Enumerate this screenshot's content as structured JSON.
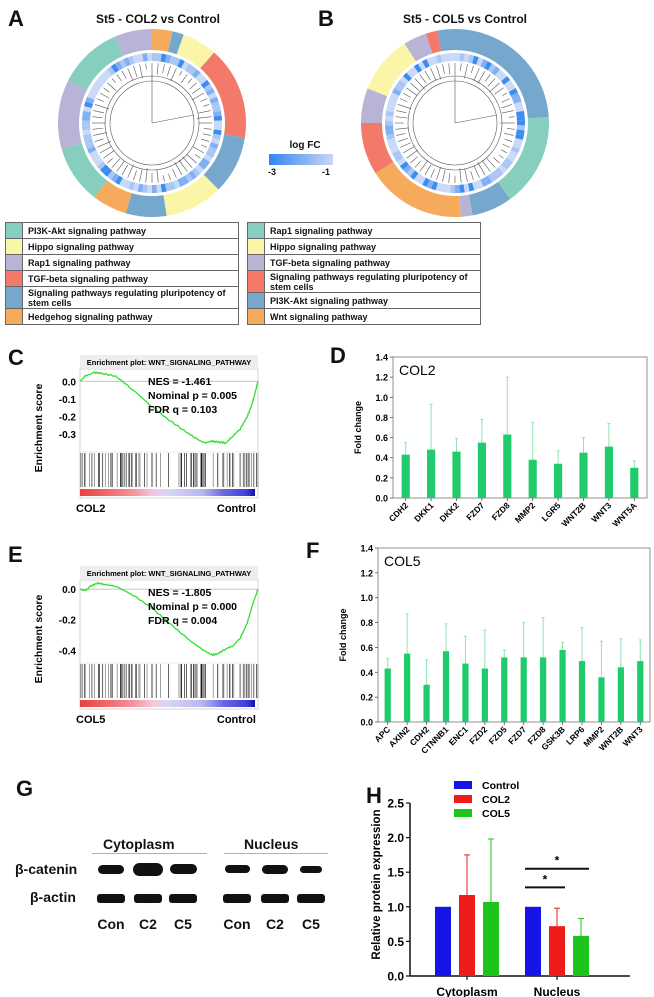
{
  "panels": {
    "A": {
      "letter": "A",
      "title": "St5 - COL2 vs Control",
      "legend": [
        {
          "label": "PI3K-Akt signaling pathway",
          "color": "#86cfbe"
        },
        {
          "label": "Hippo signaling pathway",
          "color": "#fbf6a7"
        },
        {
          "label": "Rap1 signaling pathway",
          "color": "#b7b4d6"
        },
        {
          "label": "TGF-beta signaling pathway",
          "color": "#f3796a"
        },
        {
          "label": "Signaling pathways regulating pluripotency of stem cells",
          "color": "#76a8cd"
        },
        {
          "label": "Hedgehog signaling pathway",
          "color": "#f6ab5c"
        }
      ]
    },
    "B": {
      "letter": "B",
      "title": "St5 - COL5 vs Control",
      "legend": [
        {
          "label": "Rap1 signaling pathway",
          "color": "#86cfbe"
        },
        {
          "label": "Hippo signaling pathway",
          "color": "#fbf6a7"
        },
        {
          "label": "TGF-beta signaling pathway",
          "color": "#b7b4d6"
        },
        {
          "label": "Signaling pathways regulating pluripotency of stem cells",
          "color": "#f3796a"
        },
        {
          "label": "PI3K-Akt signaling pathway",
          "color": "#76a8cd"
        },
        {
          "label": "Wnt signaling pathway",
          "color": "#f6ab5c"
        }
      ]
    },
    "logfc_legend": {
      "title": "log FC",
      "min_label": "-3",
      "max_label": "-1",
      "color_low": "#2f86f0",
      "color_high": "#c9d7f6"
    },
    "G": {
      "letter": "G",
      "groups": [
        "Cytoplasm",
        "Nucleus"
      ],
      "rows": [
        "β-catenin",
        "β-actin"
      ],
      "lanes": [
        "Con",
        "C2",
        "C5",
        "Con",
        "C2",
        "C5"
      ],
      "underline_color": "#f0a070"
    }
  },
  "chart_data": [
    {
      "id": "C",
      "letter": "C",
      "type": "line",
      "title": "Enrichment plot: WNT_SIGNALING_PATHWAY",
      "ylabel": "Enrichment score",
      "yticks": [
        "0.0",
        "-0.1",
        "-0.2",
        "-0.3"
      ],
      "ylim": [
        -0.39,
        0.07
      ],
      "x_left_label": "COL2",
      "x_right_label": "Control",
      "stats": [
        "NES = -1.461",
        "Nominal p = 0.005",
        "FDR q = 0.103"
      ],
      "line_color": "#33dd33",
      "curve": [
        [
          0,
          0.0
        ],
        [
          0.03,
          0.03
        ],
        [
          0.08,
          0.05
        ],
        [
          0.12,
          0.045
        ],
        [
          0.2,
          0.03
        ],
        [
          0.3,
          -0.05
        ],
        [
          0.4,
          -0.14
        ],
        [
          0.5,
          -0.22
        ],
        [
          0.6,
          -0.29
        ],
        [
          0.66,
          -0.33
        ],
        [
          0.7,
          -0.35
        ],
        [
          0.74,
          -0.34
        ],
        [
          0.78,
          -0.345
        ],
        [
          0.82,
          -0.35
        ],
        [
          0.86,
          -0.31
        ],
        [
          0.9,
          -0.27
        ],
        [
          0.94,
          -0.2
        ],
        [
          0.97,
          -0.12
        ],
        [
          1.0,
          0.0
        ]
      ]
    },
    {
      "id": "D",
      "letter": "D",
      "type": "bar",
      "inner_label": "COL2",
      "ylabel": "Fold change",
      "ylim": [
        0,
        1.4
      ],
      "yticks": [
        "0.0",
        "0.2",
        "0.4",
        "0.6",
        "0.8",
        "1.0",
        "1.2",
        "1.4"
      ],
      "categories": [
        "CDH2",
        "DKK1",
        "DKK2",
        "FZD7",
        "FZD8",
        "MMP2",
        "LGR5",
        "WNT2B",
        "WNT3",
        "WNT5A"
      ],
      "values": [
        0.43,
        0.48,
        0.46,
        0.55,
        0.63,
        0.38,
        0.34,
        0.45,
        0.51,
        0.3
      ],
      "errors": [
        0.12,
        0.45,
        0.13,
        0.23,
        0.57,
        0.37,
        0.13,
        0.15,
        0.23,
        0.07
      ],
      "bar_color": "#1fcb6a",
      "error_color": "#8fe3b0"
    },
    {
      "id": "E",
      "letter": "E",
      "type": "line",
      "title": "Enrichment plot: WNT_SIGNALING_PATHWAY",
      "ylabel": "Enrichment score",
      "yticks": [
        "0.0",
        "-0.2",
        "-0.4"
      ],
      "ylim": [
        -0.47,
        0.06
      ],
      "x_left_label": "COL5",
      "x_right_label": "Control",
      "stats": [
        "NES = -1.805",
        "Nominal p = 0.000",
        "FDR q = 0.004"
      ],
      "line_color": "#33dd33",
      "curve": [
        [
          0,
          0.0
        ],
        [
          0.03,
          -0.01
        ],
        [
          0.06,
          0.02
        ],
        [
          0.1,
          0.04
        ],
        [
          0.14,
          0.03
        ],
        [
          0.2,
          0.02
        ],
        [
          0.3,
          -0.04
        ],
        [
          0.4,
          -0.12
        ],
        [
          0.5,
          -0.22
        ],
        [
          0.6,
          -0.32
        ],
        [
          0.68,
          -0.39
        ],
        [
          0.74,
          -0.43
        ],
        [
          0.77,
          -0.425
        ],
        [
          0.82,
          -0.39
        ],
        [
          0.86,
          -0.37
        ],
        [
          0.9,
          -0.32
        ],
        [
          0.94,
          -0.22
        ],
        [
          0.97,
          -0.1
        ],
        [
          1.0,
          0.0
        ]
      ]
    },
    {
      "id": "F",
      "letter": "F",
      "type": "bar",
      "inner_label": "COL5",
      "ylabel": "Fold change",
      "ylim": [
        0,
        1.4
      ],
      "yticks": [
        "0.0",
        "0.2",
        "0.4",
        "0.6",
        "0.8",
        "1.0",
        "1.2",
        "1.4"
      ],
      "categories": [
        "APC",
        "AXIN2",
        "CDH2",
        "CTNNB1",
        "ENC1",
        "FZD2",
        "FZD5",
        "FZD7",
        "FZD8",
        "GSK3B",
        "LRP6",
        "MMP2",
        "WNT2B",
        "WNT3"
      ],
      "values": [
        0.43,
        0.55,
        0.3,
        0.57,
        0.47,
        0.43,
        0.52,
        0.52,
        0.52,
        0.58,
        0.49,
        0.36,
        0.44,
        0.49
      ],
      "errors": [
        0.08,
        0.32,
        0.2,
        0.22,
        0.22,
        0.31,
        0.06,
        0.28,
        0.32,
        0.06,
        0.27,
        0.29,
        0.23,
        0.17
      ],
      "bar_color": "#1fcb6a",
      "error_color": "#8fe3b0"
    },
    {
      "id": "H",
      "letter": "H",
      "type": "bar",
      "ylabel": "Relative protein expression",
      "ylim": [
        0,
        2.5
      ],
      "yticks": [
        "0.0",
        "0.5",
        "1.0",
        "1.5",
        "2.0",
        "2.5"
      ],
      "categories": [
        "Cytoplasm",
        "Nucleus"
      ],
      "series": [
        {
          "name": "Control",
          "color": "#1515e8",
          "values": [
            1.0,
            1.0
          ],
          "errors": [
            0,
            0
          ]
        },
        {
          "name": "COL2",
          "color": "#ee1b1b",
          "values": [
            1.17,
            0.72
          ],
          "errors": [
            0.58,
            0.26
          ]
        },
        {
          "name": "COL5",
          "color": "#1cc41c",
          "values": [
            1.07,
            0.58
          ],
          "errors": [
            0.91,
            0.25
          ]
        }
      ],
      "significance": [
        {
          "group": "Nucleus",
          "from": "Control",
          "to": "COL2",
          "mark": "*"
        },
        {
          "group": "Nucleus",
          "from": "Control",
          "to": "COL5",
          "mark": "*"
        }
      ],
      "legend_position": "top"
    }
  ]
}
